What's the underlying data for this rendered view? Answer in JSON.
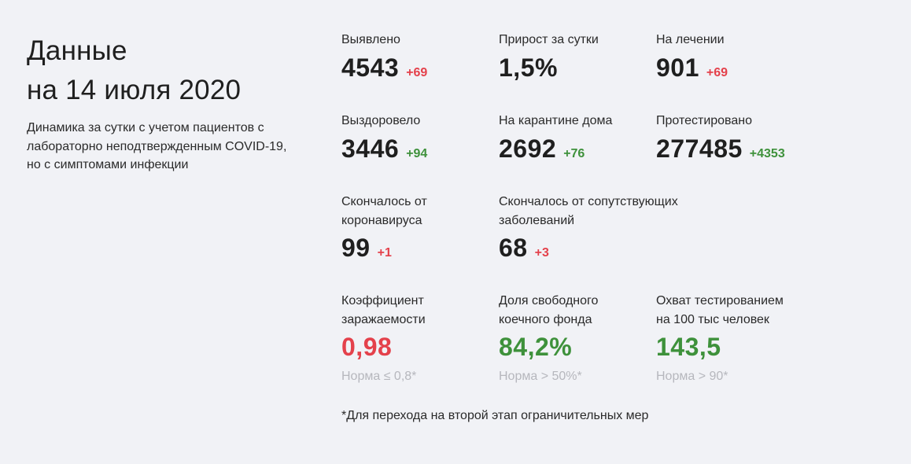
{
  "header": {
    "title_line1": "Данные",
    "title_line2": "на 14 июля 2020",
    "subtitle": "Динамика за сутки с учетом пациентов с лабораторно неподтвержденным COVID-19, но с симптомами инфекции"
  },
  "stats": {
    "detected": {
      "label": "Выявлено",
      "value": "4543",
      "delta": "+69"
    },
    "daily_growth": {
      "label": "Прирост за сутки",
      "value": "1,5%"
    },
    "in_treatment": {
      "label": "На лечении",
      "value": "901",
      "delta": "+69"
    },
    "recovered": {
      "label": "Выздоровело",
      "value": "3446",
      "delta": "+94"
    },
    "home_quarantine": {
      "label": "На карантине дома",
      "value": "2692",
      "delta": "+76"
    },
    "tested": {
      "label": "Протестировано",
      "value": "277485",
      "delta": "+4353"
    },
    "died_covid": {
      "label_line1": "Скончалось от",
      "label_line2": "коронавируса",
      "value": "99",
      "delta": "+1"
    },
    "died_comorbid": {
      "label_line1": "Скончалось от сопутствующих",
      "label_line2": "заболеваний",
      "value": "68",
      "delta": "+3"
    },
    "infection_rate": {
      "label_line1": "Коэффициент",
      "label_line2": "заражаемости",
      "value": "0,98",
      "norm": "Норма ≤ 0,8*"
    },
    "free_beds": {
      "label_line1": "Доля свободного",
      "label_line2": "коечного фонда",
      "value": "84,2%",
      "norm": "Норма > 50%*"
    },
    "testing_coverage": {
      "label_line1": "Охват тестированием",
      "label_line2": "на 100 тыс человек",
      "value": "143,5",
      "norm": "Норма > 90*"
    }
  },
  "footnote": "*Для перехода на второй этап ограничительных мер",
  "colors": {
    "red": "#e4414b",
    "green": "#3e913b",
    "muted": "#b6b7bd",
    "background": "#f1f2f6"
  }
}
